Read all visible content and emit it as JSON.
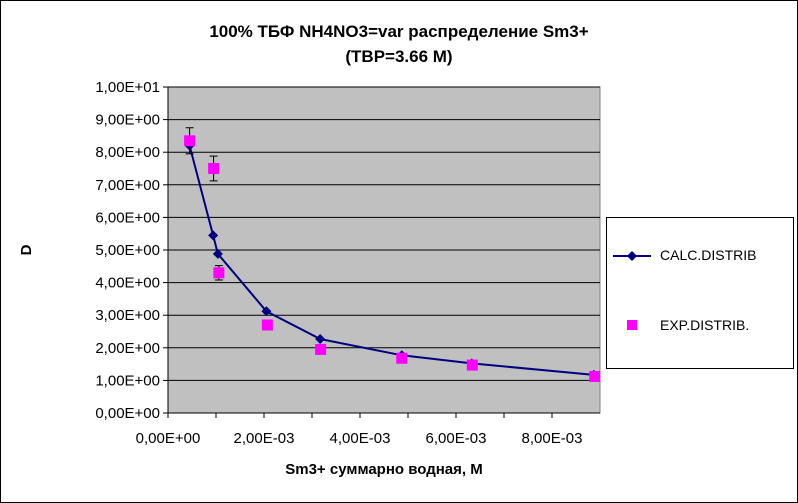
{
  "chart_data": {
    "type": "scatter",
    "title": "100%  ТБФ  NH4NO3=var распределение Sm3+",
    "subtitle": "(ТВР=3.66 М)",
    "xlabel": "Sm3+ суммарно   водная, М",
    "ylabel": "D",
    "xlim": [
      0,
      0.009
    ],
    "ylim": [
      0,
      10
    ],
    "x_ticks": [
      "0,00E+00",
      "2,00E-03",
      "4,00E-03",
      "6,00E-03",
      "8,00E-03"
    ],
    "y_ticks": [
      "0,00E+00",
      "1,00E+00",
      "2,00E+00",
      "3,00E+00",
      "4,00E+00",
      "5,00E+00",
      "6,00E+00",
      "7,00E+00",
      "8,00E+00",
      "9,00E+00",
      "1,00E+01"
    ],
    "grid": "horizontal",
    "plot_background": "#c0c0c0",
    "legend_position": "right",
    "series": [
      {
        "name": "CALC.DISTRIB",
        "style": "line-diamond",
        "color": "#000080",
        "x": [
          0.00045,
          0.00094,
          0.00104,
          0.00205,
          0.00317,
          0.00487,
          0.00633,
          0.00887
        ],
        "y": [
          8.2,
          5.45,
          4.88,
          3.12,
          2.27,
          1.77,
          1.52,
          1.17
        ]
      },
      {
        "name": "EXP.DISTRIB.",
        "style": "square",
        "color": "#ff00ff",
        "x": [
          0.00045,
          0.00095,
          0.00106,
          0.00207,
          0.00318,
          0.00487,
          0.00634,
          0.00889
        ],
        "y": [
          8.35,
          7.5,
          4.3,
          2.7,
          1.95,
          1.68,
          1.47,
          1.12
        ],
        "error_y": [
          0.4,
          0.38,
          0.22,
          0,
          0,
          0,
          0,
          0
        ]
      }
    ]
  }
}
